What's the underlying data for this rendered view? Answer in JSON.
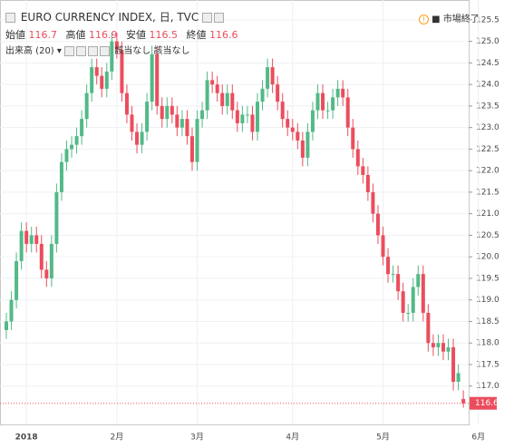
{
  "chart_data": {
    "type": "candlestick",
    "title": "EURO CURRENCY INDEX, 日, TVC",
    "status": "市場終了",
    "labels": {
      "open": "始値",
      "high": "高値",
      "low": "安値",
      "close": "終値"
    },
    "volume_label": "出来高 (20)",
    "na_texts": [
      "該当なし",
      "該当なし"
    ],
    "up_color": "#53b987",
    "down_color": "#eb4d5c",
    "categories": [
      null,
      null,
      null,
      null,
      "2018",
      null,
      null,
      null,
      null,
      null,
      null,
      null,
      null,
      null,
      null,
      null,
      null,
      null,
      null,
      null,
      null,
      null,
      "2月",
      null,
      null,
      null,
      null,
      null,
      null,
      null,
      null,
      null,
      null,
      null,
      null,
      null,
      null,
      null,
      "3月",
      null,
      null,
      null,
      null,
      null,
      null,
      null,
      null,
      null,
      null,
      null,
      null,
      null,
      null,
      null,
      null,
      null,
      null,
      "4月",
      null,
      null,
      null,
      null,
      null,
      null,
      null,
      null,
      null,
      null,
      null,
      null,
      null,
      null,
      null,
      null,
      null,
      "5月",
      null,
      null,
      null,
      null,
      null,
      null,
      null,
      null,
      null,
      null,
      null,
      null,
      null,
      null,
      null,
      null,
      null,
      null,
      "6月"
    ],
    "open": [
      118.3,
      118.5,
      119.0,
      119.9,
      120.6,
      120.3,
      120.5,
      120.3,
      119.7,
      119.5,
      120.3,
      121.5,
      122.2,
      122.5,
      122.6,
      122.8,
      123.2,
      123.8,
      124.4,
      124.2,
      123.9,
      124.3,
      125.0,
      124.8,
      123.8,
      123.3,
      122.9,
      122.6,
      122.9,
      123.6,
      124.7,
      123.5,
      123.2,
      123.5,
      123.3,
      123.0,
      123.2,
      122.8,
      122.2,
      123.2,
      123.4,
      124.1,
      124.0,
      123.8,
      123.5,
      123.8,
      123.4,
      123.1,
      123.3,
      123.3,
      122.9,
      123.6,
      123.9,
      124.4,
      124.0,
      123.6,
      123.2,
      123.0,
      122.9,
      122.7,
      122.3,
      122.9,
      123.4,
      123.8,
      123.4,
      123.4,
      123.7,
      123.9,
      123.7,
      123.0,
      122.5,
      122.1,
      121.9,
      121.5,
      121.0,
      120.5,
      120.0,
      119.6,
      119.6,
      119.2,
      118.7,
      118.7,
      119.3,
      119.6,
      118.7,
      118.0,
      117.9,
      118.0,
      117.8,
      117.9,
      117.1,
      116.7,
      null,
      null,
      null
    ],
    "high": [
      118.7,
      119.2,
      120.1,
      120.8,
      120.8,
      120.7,
      120.7,
      120.5,
      119.9,
      120.5,
      121.7,
      122.4,
      122.7,
      122.8,
      123.0,
      123.4,
      124.0,
      124.6,
      124.6,
      124.4,
      124.5,
      125.2,
      125.2,
      125.0,
      124.0,
      123.5,
      123.1,
      123.1,
      123.8,
      124.9,
      124.9,
      123.7,
      123.7,
      123.7,
      123.5,
      123.4,
      123.4,
      123.0,
      123.4,
      123.6,
      124.3,
      124.3,
      124.2,
      124.0,
      124.0,
      124.0,
      123.6,
      123.5,
      123.5,
      123.5,
      123.8,
      124.1,
      124.6,
      124.6,
      124.2,
      123.8,
      123.4,
      123.2,
      123.1,
      122.9,
      123.1,
      123.6,
      124.0,
      124.0,
      123.6,
      123.9,
      124.1,
      124.1,
      123.9,
      123.2,
      122.7,
      122.3,
      122.1,
      121.7,
      121.2,
      120.7,
      120.2,
      119.8,
      119.8,
      119.4,
      118.9,
      119.5,
      119.8,
      119.8,
      118.9,
      118.2,
      118.2,
      118.2,
      118.1,
      118.1,
      117.5,
      116.9,
      null,
      null,
      null
    ],
    "low": [
      118.1,
      118.3,
      118.8,
      119.7,
      120.1,
      120.1,
      120.1,
      119.5,
      119.3,
      119.3,
      120.1,
      121.3,
      122.0,
      122.3,
      122.4,
      122.6,
      123.0,
      123.6,
      124.0,
      123.7,
      123.7,
      124.1,
      124.6,
      123.6,
      123.1,
      122.7,
      122.4,
      122.4,
      122.7,
      123.4,
      123.3,
      123.0,
      123.0,
      123.1,
      122.8,
      122.8,
      122.6,
      122.0,
      122.0,
      123.0,
      123.2,
      123.8,
      123.6,
      123.3,
      123.3,
      123.2,
      122.9,
      122.9,
      123.1,
      122.7,
      122.7,
      123.4,
      123.7,
      123.8,
      123.4,
      123.0,
      122.8,
      122.7,
      122.5,
      122.1,
      122.1,
      122.7,
      123.2,
      123.2,
      123.2,
      123.2,
      123.5,
      123.5,
      122.8,
      122.3,
      121.9,
      121.7,
      121.3,
      120.8,
      120.3,
      119.8,
      119.4,
      119.4,
      119.0,
      118.5,
      118.5,
      118.5,
      119.1,
      118.5,
      117.8,
      117.7,
      117.7,
      117.6,
      117.6,
      116.9,
      116.9,
      116.5,
      null,
      null,
      null
    ],
    "close": [
      118.5,
      119.0,
      119.9,
      120.6,
      120.3,
      120.5,
      120.3,
      119.7,
      119.5,
      120.3,
      121.5,
      122.2,
      122.5,
      122.6,
      122.8,
      123.2,
      123.8,
      124.4,
      124.2,
      123.9,
      124.3,
      125.0,
      124.8,
      123.8,
      123.3,
      122.9,
      122.6,
      122.9,
      123.6,
      124.7,
      123.5,
      123.2,
      123.5,
      123.3,
      123.0,
      123.2,
      122.8,
      122.2,
      123.2,
      123.4,
      124.1,
      124.0,
      123.8,
      123.5,
      123.8,
      123.4,
      123.1,
      123.3,
      123.3,
      122.9,
      123.6,
      123.9,
      124.4,
      124.0,
      123.6,
      123.2,
      123.0,
      122.9,
      122.7,
      122.3,
      122.9,
      123.4,
      123.8,
      123.4,
      123.4,
      123.7,
      123.9,
      123.7,
      123.0,
      122.5,
      122.1,
      121.9,
      121.5,
      121.0,
      120.5,
      120.0,
      119.6,
      119.6,
      119.2,
      118.7,
      118.7,
      119.3,
      119.6,
      118.7,
      118.0,
      117.9,
      118.0,
      117.8,
      117.9,
      117.1,
      117.3,
      116.6,
      null,
      null,
      null
    ],
    "ylim": [
      116.11,
      125.96
    ],
    "yticks": [
      {
        "value": 117,
        "label": "117.0"
      },
      117.5,
      {
        "value": 118,
        "label": "118.0"
      },
      118.5,
      {
        "value": 119,
        "label": "119.0"
      },
      119.5,
      {
        "value": 120,
        "label": "120.0"
      },
      120.5,
      {
        "value": 121,
        "label": "121.0"
      },
      121.5,
      {
        "value": 122,
        "label": "122.0"
      },
      122.5,
      {
        "value": 123,
        "label": "123.0"
      },
      123.5,
      {
        "value": 124,
        "label": "124.0"
      },
      124.5,
      {
        "value": 125,
        "label": "125.0"
      },
      125.5
    ],
    "grid": true
  }
}
